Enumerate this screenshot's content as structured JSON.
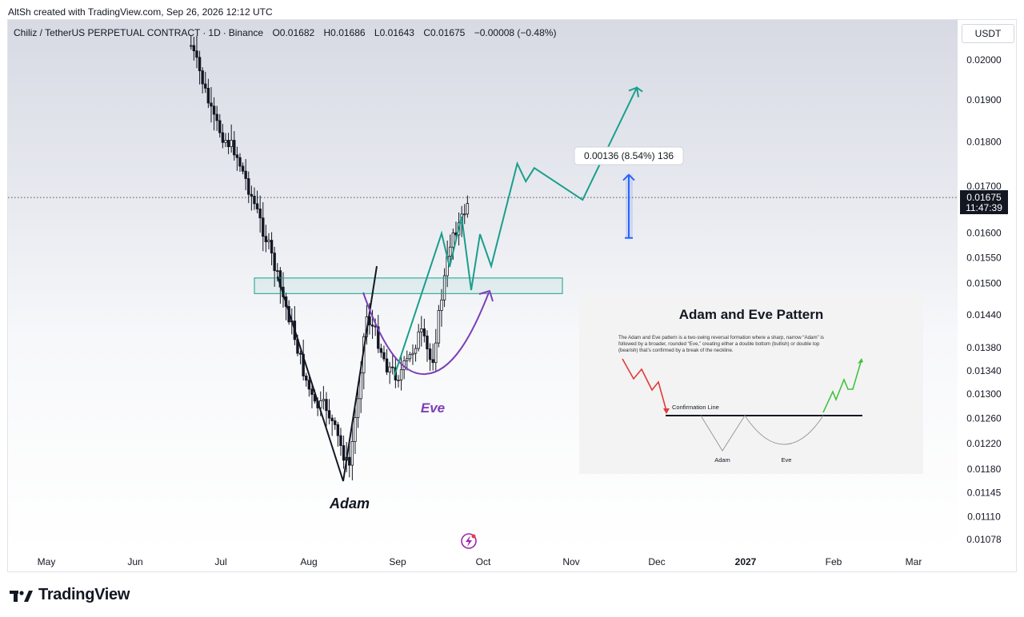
{
  "caption": "AltSh created with TradingView.com, Sep 26, 2026 12:12 UTC",
  "symbol": {
    "name": "Chiliz / TetherUS PERPETUAL CONTRACT",
    "interval": "1D",
    "exchange": "Binance",
    "open": "O0.01682",
    "high": "H0.01686",
    "low": "L0.01643",
    "close": "C0.01675",
    "change": "−0.00008 (−0.48%)"
  },
  "currency": "USDT",
  "price_axis": {
    "labels": [
      "0.02000",
      "0.01900",
      "0.01800",
      "0.01700",
      "0.01600",
      "0.01550",
      "0.01500",
      "0.01440",
      "0.01380",
      "0.01340",
      "0.01300",
      "0.01260",
      "0.01220",
      "0.01180",
      "0.01145",
      "0.01110",
      "0.01078"
    ],
    "current_price": "0.01675",
    "countdown": "11:47:39"
  },
  "time_axis": [
    "May",
    "Jun",
    "Jul",
    "Aug",
    "Sep",
    "Oct",
    "Nov",
    "Dec",
    "2027",
    "Feb",
    "Mar"
  ],
  "annotations": {
    "adam": "Adam",
    "eve": "Eve",
    "measure": "0.00136 (8.54%) 136"
  },
  "inset": {
    "title": "Adam and Eve Pattern",
    "description": "The Adam and Eve pattern is a two-swing reversal formation where a sharp, narrow “Adam” is followed by a broader, rounded “Eve,” creating either a double bottom (bullish) or double top (bearish) that’s confirmed by a break of the neckline.",
    "confirmation": "Confirmation Line",
    "adam": "Adam",
    "eve": "Eve"
  },
  "brand": "TradingView",
  "colors": {
    "projection": "#1a9e8c",
    "eve_curve": "#7b3fb8",
    "measure_arrow": "#2962ff",
    "inset_down": "#e53935",
    "inset_up": "#43c23f",
    "price_tag": "#131722"
  },
  "chart_data": {
    "type": "candlestick",
    "symbol": "Chiliz / TetherUS PERPETUAL CONTRACT",
    "timeframe": "1D",
    "last": {
      "open": 0.01682,
      "high": 0.01686,
      "low": 0.01643,
      "close": 0.01675,
      "change": -8e-05,
      "change_pct": -0.48
    },
    "x_ticks": [
      "May",
      "Jun",
      "Jul",
      "Aug",
      "Sep",
      "Oct",
      "Nov",
      "Dec",
      "2027",
      "Feb",
      "Mar"
    ],
    "y_ticks": [
      0.02,
      0.019,
      0.018,
      0.017,
      0.016,
      0.0155,
      0.015,
      0.0144,
      0.0138,
      0.0134,
      0.013,
      0.0126,
      0.0122,
      0.0118,
      0.01145,
      0.0111,
      0.01078
    ],
    "y_scale": "log",
    "price_path": [
      {
        "date": "2026-06-20",
        "price": 0.0205
      },
      {
        "date": "2026-06-24",
        "price": 0.0196
      },
      {
        "date": "2026-06-28",
        "price": 0.0186
      },
      {
        "date": "2026-07-02",
        "price": 0.0181
      },
      {
        "date": "2026-07-06",
        "price": 0.0178
      },
      {
        "date": "2026-07-10",
        "price": 0.0171
      },
      {
        "date": "2026-07-14",
        "price": 0.0164
      },
      {
        "date": "2026-07-18",
        "price": 0.0157
      },
      {
        "date": "2026-07-22",
        "price": 0.0149
      },
      {
        "date": "2026-07-26",
        "price": 0.0142
      },
      {
        "date": "2026-07-30",
        "price": 0.0134
      },
      {
        "date": "2026-08-03",
        "price": 0.0128
      },
      {
        "date": "2026-08-07",
        "price": 0.0128
      },
      {
        "date": "2026-08-11",
        "price": 0.0123
      },
      {
        "date": "2026-08-15",
        "price": 0.0118
      },
      {
        "date": "2026-08-18",
        "price": 0.0129
      },
      {
        "date": "2026-08-21",
        "price": 0.0144
      },
      {
        "date": "2026-08-24",
        "price": 0.0141
      },
      {
        "date": "2026-08-28",
        "price": 0.0135
      },
      {
        "date": "2026-09-01",
        "price": 0.0133
      },
      {
        "date": "2026-09-05",
        "price": 0.0136
      },
      {
        "date": "2026-09-09",
        "price": 0.0141
      },
      {
        "date": "2026-09-13",
        "price": 0.0135
      },
      {
        "date": "2026-09-16",
        "price": 0.0146
      },
      {
        "date": "2026-09-20",
        "price": 0.016
      },
      {
        "date": "2026-09-23",
        "price": 0.0162
      },
      {
        "date": "2026-09-26",
        "price": 0.01675
      }
    ],
    "neckline_zone": {
      "top": 0.0151,
      "bottom": 0.0148
    },
    "projection_path": [
      {
        "date": "2026-09-26",
        "price": 0.0161
      },
      {
        "date": "2026-09-28",
        "price": 0.0153
      },
      {
        "date": "2026-10-02",
        "price": 0.0154
      },
      {
        "date": "2026-10-13",
        "price": 0.0175
      },
      {
        "date": "2026-10-16",
        "price": 0.0171
      },
      {
        "date": "2026-10-19",
        "price": 0.0174
      },
      {
        "date": "2026-11-05",
        "price": 0.0167
      },
      {
        "date": "2026-11-24",
        "price": 0.0193
      },
      {
        "date": "2026-11-26",
        "price": 0.0192
      }
    ],
    "measure": {
      "value": 0.00136,
      "percent": 8.54,
      "ticks": 136,
      "from": 0.0159,
      "to": 0.01725
    }
  }
}
